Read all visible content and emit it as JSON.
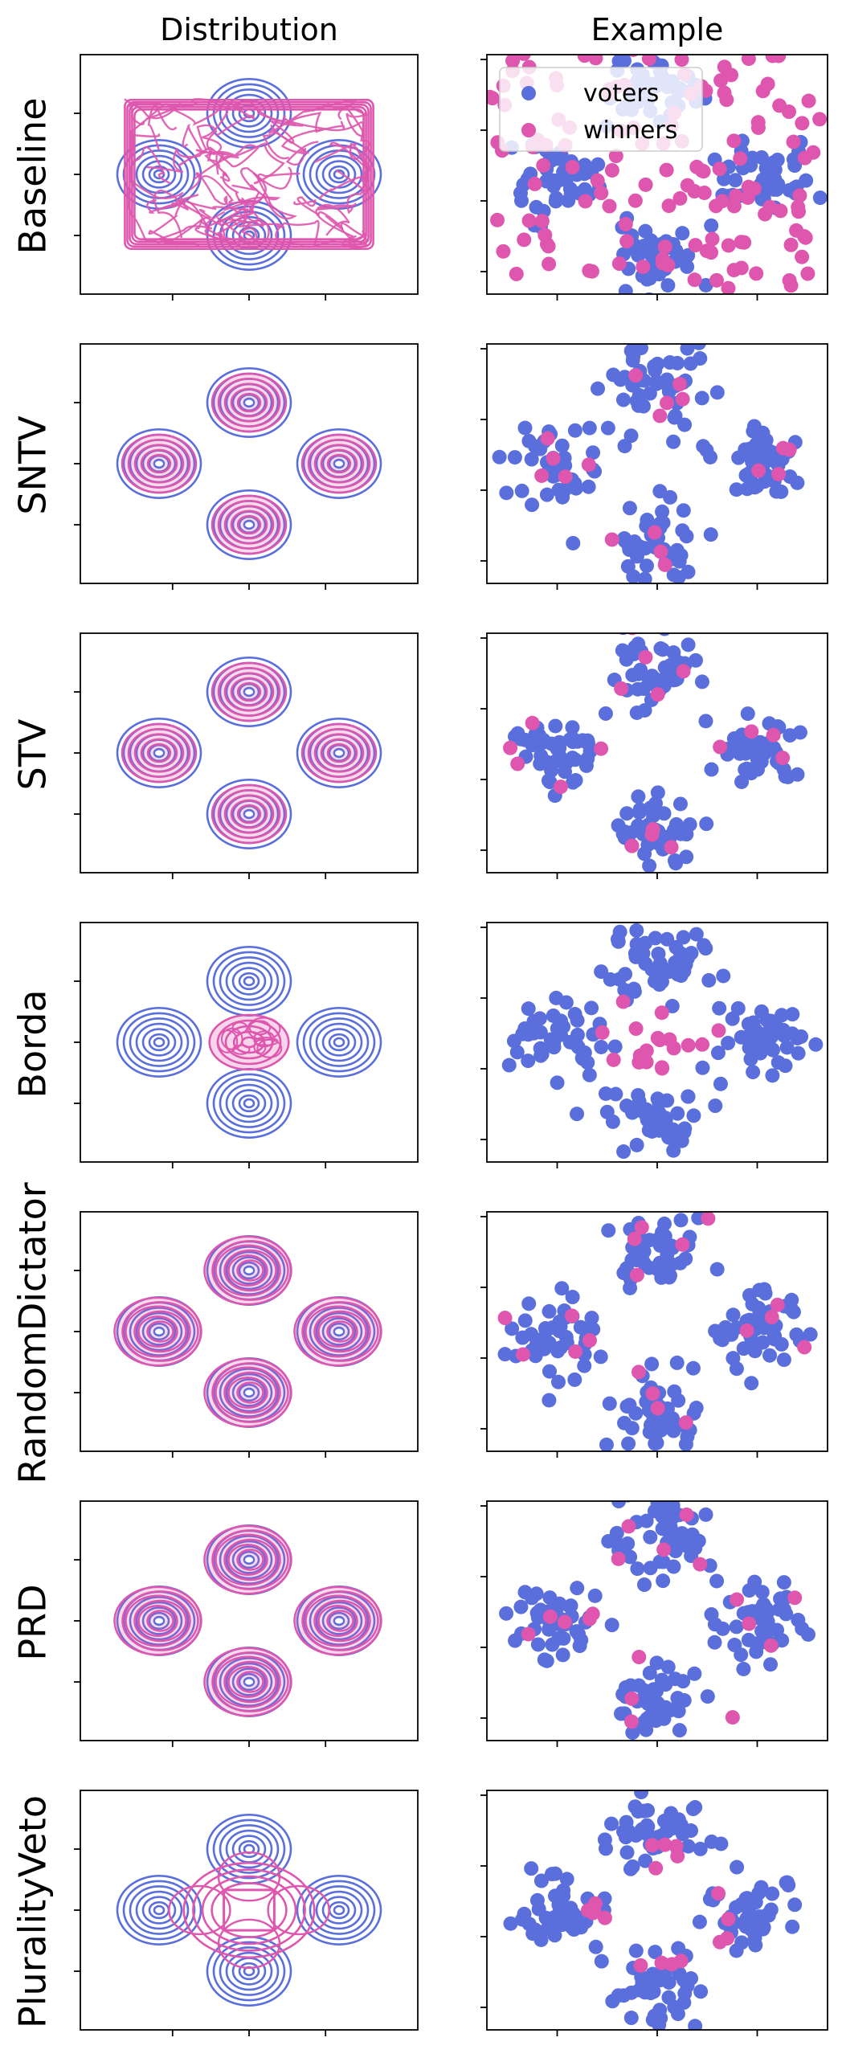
{
  "colors": {
    "voters": "#5a6fdc",
    "winners": "#de56ad",
    "axes": "#000000"
  },
  "chart_data": {
    "type": "scatter",
    "columns": [
      "Distribution",
      "Example"
    ],
    "rows": [
      "Baseline",
      "SNTV",
      "STV",
      "Borda",
      "RandomDictator",
      "PRD",
      "PluralityVeto"
    ],
    "legend": {
      "placement": "upper-left",
      "entries": [
        {
          "label": "voters",
          "color": "#5a6fdc"
        },
        {
          "label": "winners",
          "color": "#de56ad"
        }
      ]
    },
    "voter_clusters": [
      {
        "name": "top",
        "center": [
          0.0,
          1.0
        ]
      },
      {
        "name": "left",
        "center": [
          -1.0,
          0.0
        ]
      },
      {
        "name": "right",
        "center": [
          1.0,
          0.0
        ]
      },
      {
        "name": "bottom",
        "center": [
          0.0,
          -1.0
        ]
      }
    ],
    "distribution_winner_pattern": {
      "Baseline": "uniform-square",
      "SNTV": "on-clusters",
      "STV": "on-clusters",
      "Borda": "center",
      "RandomDictator": "on-clusters",
      "PRD": "on-clusters",
      "PluralityVeto": "ring-between-clusters"
    },
    "example_winner_counts": {
      "Baseline": 150,
      "SNTV": 18,
      "STV": 18,
      "Borda": 18,
      "RandomDictator": 18,
      "PRD": 18,
      "PluralityVeto": 18
    },
    "voters_per_cluster": 45,
    "axis_ticks": "unlabeled"
  }
}
